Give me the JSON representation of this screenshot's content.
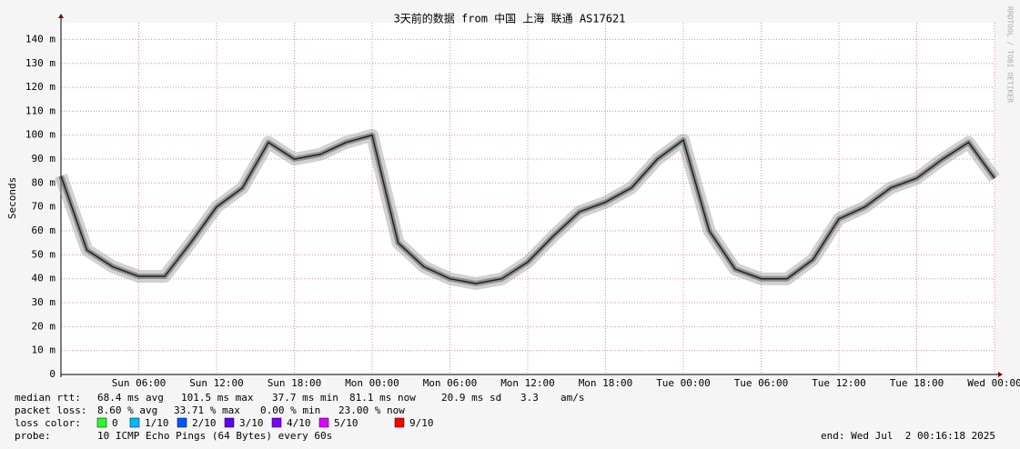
{
  "chart_data": {
    "type": "line",
    "title": "3天前的数据 from 中国 上海 联通 AS17621",
    "y_label": "Seconds",
    "side_label": "RRDTOOL / TOBI OETIKER",
    "categories": [
      null,
      null,
      null,
      "Sun 06:00",
      null,
      null,
      "Sun 12:00",
      null,
      null,
      "Sun 18:00",
      null,
      null,
      "Mon 00:00",
      null,
      null,
      "Mon 06:00",
      null,
      null,
      "Mon 12:00",
      null,
      null,
      "Mon 18:00",
      null,
      null,
      "Tue 00:00",
      null,
      null,
      "Tue 06:00",
      null,
      null,
      "Tue 12:00",
      null,
      null,
      "Tue 18:00",
      null,
      null,
      "Wed 00:00"
    ],
    "series": [
      {
        "name": "median rtt",
        "color": "#202020",
        "values": [
          83,
          52,
          45,
          41,
          41,
          55,
          70,
          78,
          97,
          90,
          92,
          97,
          100,
          55,
          45,
          40,
          38,
          40,
          47,
          58,
          68,
          72,
          78,
          90,
          98,
          60,
          44,
          40,
          40,
          48,
          65,
          70,
          78,
          82,
          90,
          97,
          82
        ]
      }
    ],
    "ylim": [
      0,
      147
    ],
    "yticks": [
      0,
      {
        "value": 10,
        "label": "10 m"
      },
      {
        "value": 20,
        "label": "20 m"
      },
      {
        "value": 30,
        "label": "30 m"
      },
      {
        "value": 40,
        "label": "40 m"
      },
      {
        "value": 50,
        "label": "50 m"
      },
      {
        "value": 60,
        "label": "60 m"
      },
      {
        "value": 70,
        "label": "70 m"
      },
      {
        "value": 80,
        "label": "80 m"
      },
      {
        "value": 90,
        "label": "90 m"
      },
      {
        "value": 100,
        "label": "100 m"
      },
      {
        "value": 110,
        "label": "110 m"
      },
      {
        "value": 120,
        "label": "120 m"
      },
      {
        "value": 130,
        "label": "130 m"
      },
      {
        "value": 140,
        "label": "140 m"
      }
    ],
    "grid": true,
    "footer": {
      "median_rtt": [
        "median rtt:",
        "68.4 ms avg",
        "101.5 ms max",
        "37.7 ms min",
        "81.1 ms now",
        "20.9 ms sd",
        "3.3",
        "am/s"
      ],
      "packet_loss": [
        "packet loss:",
        "8.60 % avg",
        "33.71 % max",
        "0.00 % min",
        "23.00 % now"
      ],
      "loss_color_label": "loss color:",
      "loss_colors": [
        {
          "label": "0",
          "color": "#26ff26"
        },
        {
          "label": "1/10",
          "color": "#00b8ff"
        },
        {
          "label": "2/10",
          "color": "#0059ff"
        },
        {
          "label": "3/10",
          "color": "#5e00ff"
        },
        {
          "label": "4/10",
          "color": "#7e00ff"
        },
        {
          "label": "5/10",
          "color": "#dd00ff"
        },
        {
          "label": "9/10",
          "color": "#ff0000"
        }
      ],
      "probe": [
        "probe:",
        "10 ICMP Echo Pings (64 Bytes) every 60s"
      ],
      "end": "end: Wed Jul  2 00:16:18 2025"
    }
  }
}
